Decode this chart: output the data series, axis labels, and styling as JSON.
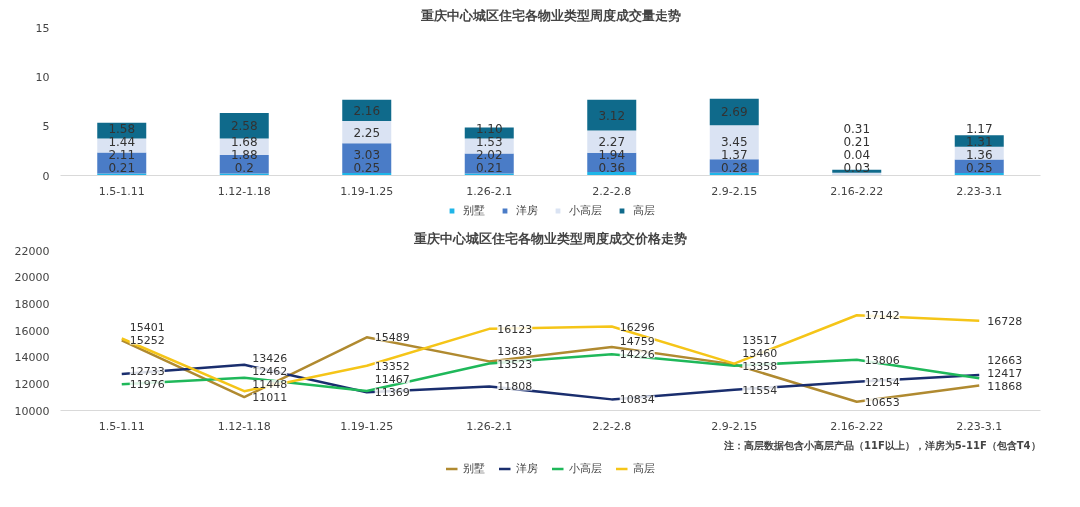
{
  "chart_data": [
    {
      "type": "bar",
      "title": "重庆中心城区住宅各物业类型周度成交量走势",
      "stacked": true,
      "legend": "bottom",
      "grid": false,
      "categories": [
        "1.5-1.11",
        "1.12-1.18",
        "1.19-1.25",
        "1.26-2.1",
        "2.2-2.8",
        "2.9-2.15",
        "2.16-2.22",
        "2.23-3.1"
      ],
      "ylim": [
        0,
        15
      ],
      "yticks": [
        0,
        5,
        10,
        15
      ],
      "series": [
        {
          "name": "别墅",
          "color": "#1fb5e8",
          "values": [
            0.21,
            0.2,
            0.25,
            0.21,
            0.36,
            0.28,
            0.03,
            0.25
          ],
          "value_labels": [
            "0.21",
            "0.2",
            "0.25",
            "0.21",
            "0.36",
            "0.28",
            "0.03",
            "0.25"
          ]
        },
        {
          "name": "洋房",
          "color": "#4a7cc7",
          "values": [
            2.11,
            1.88,
            3.03,
            2.02,
            1.94,
            1.37,
            0.04,
            1.36
          ],
          "value_labels": [
            "2.11",
            "1.88",
            "3.03",
            "2.02",
            "1.94",
            "1.37",
            "0.04",
            "1.36"
          ]
        },
        {
          "name": "小高层",
          "color": "#dae3f3",
          "values": [
            1.44,
            1.68,
            2.25,
            1.53,
            2.27,
            3.45,
            0.21,
            1.31
          ],
          "value_labels": [
            "1.44",
            "1.68",
            "2.25",
            "1.53",
            "2.27",
            "3.45",
            "0.21",
            "1.31"
          ]
        },
        {
          "name": "高层",
          "color": "#0f6a8b",
          "values": [
            1.58,
            2.58,
            2.16,
            1.1,
            3.12,
            2.69,
            0.31,
            1.17
          ],
          "value_labels": [
            "1.58",
            "2.58",
            "2.16",
            "1.10",
            "3.12",
            "2.69",
            "0.31",
            "1.17"
          ]
        }
      ]
    },
    {
      "type": "line",
      "title": "重庆中心城区住宅各物业类型周度成交价格走势",
      "legend": "bottom",
      "grid": false,
      "data_labels": true,
      "categories": [
        "1.5-1.11",
        "1.12-1.18",
        "1.19-1.25",
        "1.26-2.1",
        "2.2-2.8",
        "2.9-2.15",
        "2.16-2.22",
        "2.23-3.1"
      ],
      "ylim": [
        10000,
        22000
      ],
      "yticks": [
        10000,
        12000,
        14000,
        16000,
        18000,
        20000,
        22000
      ],
      "annotations": [
        "注：高层数据包含小高层产品（11F以上），洋房为5-11F（包含T4）"
      ],
      "series": [
        {
          "name": "别墅",
          "color": "#b08a30",
          "values": [
            15252,
            11011,
            15489,
            13683,
            14759,
            13460,
            10653,
            11868
          ]
        },
        {
          "name": "洋房",
          "color": "#1a2e6e",
          "values": [
            12733,
            13426,
            11369,
            11808,
            10834,
            11554,
            12154,
            12663
          ]
        },
        {
          "name": "小高层",
          "color": "#1fb85a",
          "values": [
            11976,
            12462,
            11467,
            13523,
            14226,
            13358,
            13806,
            12417
          ]
        },
        {
          "name": "高层",
          "color": "#f5c518",
          "values": [
            15401,
            11448,
            13352,
            16123,
            16296,
            13517,
            17142,
            16728
          ]
        }
      ]
    }
  ]
}
